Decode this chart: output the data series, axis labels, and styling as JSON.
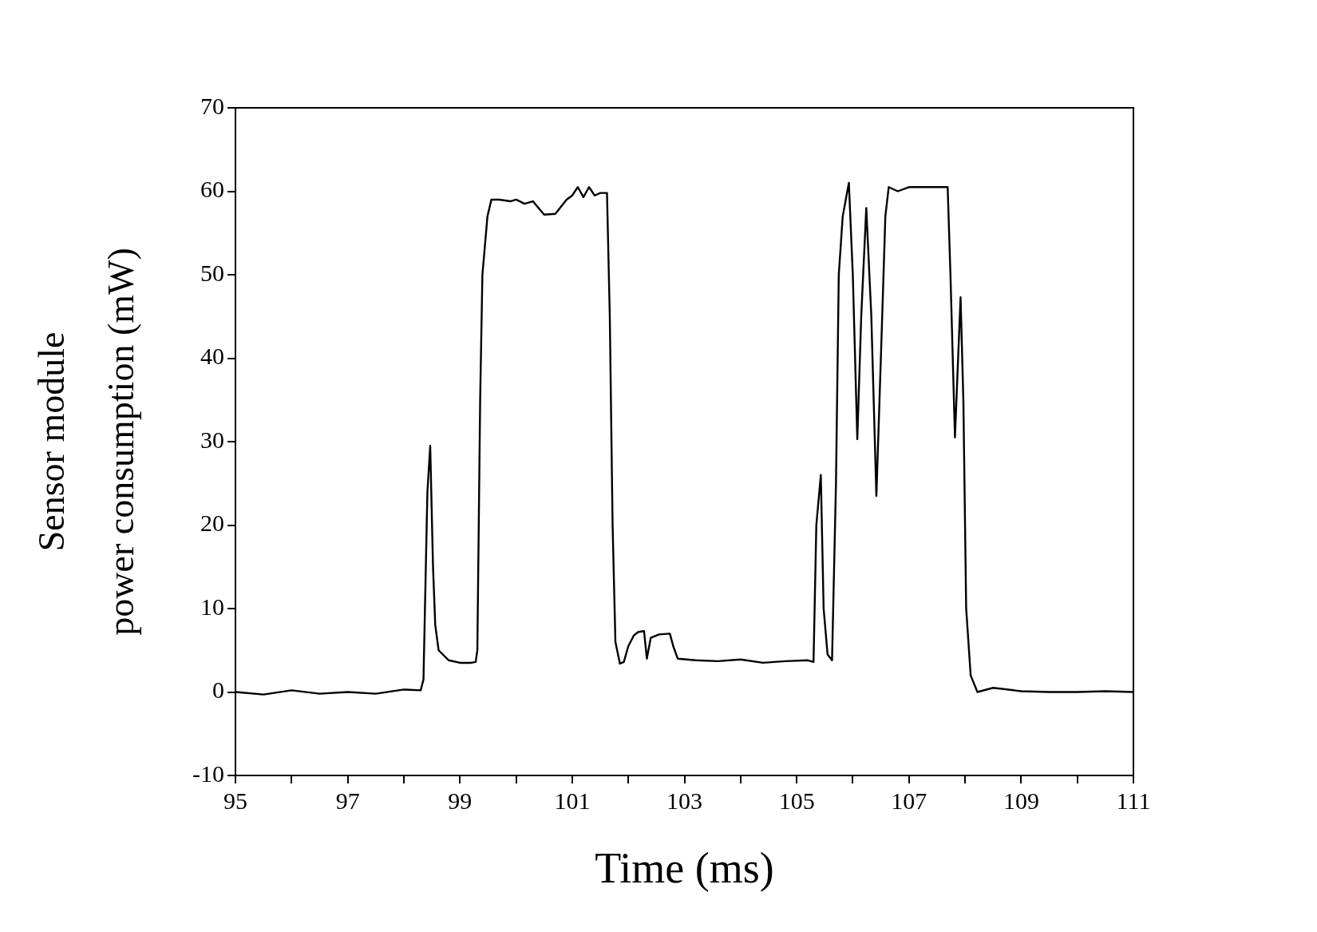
{
  "chart_data": {
    "type": "line",
    "xlabel": "Time (ms)",
    "ylabel": "Sensor module\npower consumption (mW)",
    "xlim": [
      95,
      111
    ],
    "xticks": [
      95,
      {
        "value": 96,
        "label": null
      },
      97,
      {
        "value": 98,
        "label": null
      },
      99,
      {
        "value": 100,
        "label": null
      },
      101,
      {
        "value": 102,
        "label": null
      },
      103,
      {
        "value": 104,
        "label": null
      },
      105,
      {
        "value": 106,
        "label": null
      },
      107,
      {
        "value": 108,
        "label": null
      },
      109,
      {
        "value": 110,
        "label": null
      },
      111
    ],
    "ylim": [
      -10,
      70
    ],
    "yticks": [
      -10,
      0,
      10,
      20,
      30,
      40,
      50,
      60,
      70
    ],
    "grid": false,
    "legend": false,
    "marker": "none",
    "line_style": "solid",
    "series": [
      {
        "color": "#000000",
        "x": [
          95,
          95.5,
          96,
          96.5,
          97,
          97.5,
          98,
          98.3,
          98.35,
          98.42,
          98.47,
          98.52,
          98.56,
          98.62,
          98.8,
          99,
          99.2,
          99.28,
          99.31,
          99.36,
          99.4,
          99.49,
          99.56,
          99.7,
          99.9,
          100,
          100.15,
          100.3,
          100.5,
          100.7,
          100.9,
          101,
          101.1,
          101.2,
          101.3,
          101.4,
          101.5,
          101.62,
          101.67,
          101.72,
          101.77,
          101.85,
          101.92,
          102.0,
          102.1,
          102.18,
          102.28,
          102.33,
          102.4,
          102.55,
          102.74,
          102.8,
          102.88,
          103.2,
          103.6,
          104,
          104.4,
          104.8,
          105.2,
          105.3,
          105.35,
          105.43,
          105.48,
          105.55,
          105.63,
          105.7,
          105.75,
          105.82,
          105.93,
          106.0,
          106.08,
          106.15,
          106.24,
          106.33,
          106.42,
          106.5,
          106.58,
          106.64,
          106.8,
          107,
          107.3,
          107.69,
          107.74,
          107.82,
          107.92,
          107.97,
          108.02,
          108.1,
          108.22,
          108.5,
          109,
          109.5,
          110,
          110.5,
          111
        ],
        "values": [
          0,
          -0.3,
          0.2,
          -0.2,
          0,
          -0.2,
          0.3,
          0.2,
          1.5,
          24,
          29.5,
          15,
          8,
          5,
          3.8,
          3.5,
          3.5,
          3.6,
          5,
          35,
          50,
          57,
          59,
          59,
          58.8,
          59,
          58.5,
          58.8,
          57.2,
          57.3,
          59,
          59.5,
          60.5,
          59.3,
          60.5,
          59.5,
          59.8,
          59.8,
          45,
          20,
          6,
          3.4,
          3.6,
          5.5,
          6.8,
          7.2,
          7.3,
          4.0,
          6.5,
          6.9,
          7,
          5.5,
          4,
          3.8,
          3.7,
          3.9,
          3.5,
          3.7,
          3.8,
          3.6,
          20,
          26,
          10,
          4.5,
          3.8,
          25,
          50,
          57,
          61,
          50,
          30.3,
          45,
          58,
          45,
          23.5,
          40,
          57,
          60.5,
          60,
          60.5,
          60.5,
          60.5,
          50,
          30.5,
          47.3,
          35,
          10,
          2,
          0,
          0.5,
          0.1,
          0,
          0,
          0.1,
          0
        ]
      }
    ]
  }
}
